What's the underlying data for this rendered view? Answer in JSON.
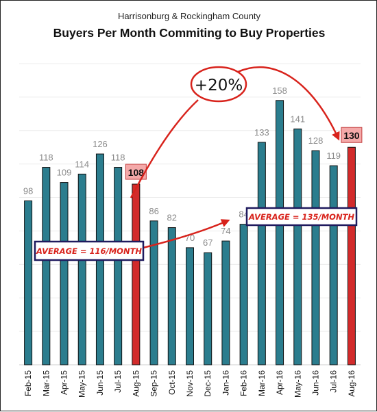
{
  "chart_data": {
    "type": "bar",
    "subtitle": "Harrisonburg & Rockingham County",
    "title": "Buyers Per Month Commiting to Buy Properties",
    "categories": [
      "Feb-15",
      "Mar-15",
      "Apr-15",
      "May-15",
      "Jun-15",
      "Jul-15",
      "Aug-15",
      "Sep-15",
      "Oct-15",
      "Nov-15",
      "Dec-15",
      "Jan-16",
      "Feb-16",
      "Mar-16",
      "Apr-16",
      "May-16",
      "Jun-16",
      "Jul-16",
      "Aug-16"
    ],
    "values": [
      98,
      118,
      109,
      114,
      126,
      118,
      108,
      86,
      82,
      70,
      67,
      74,
      84,
      133,
      158,
      141,
      128,
      119,
      130
    ],
    "highlighted": [
      "Aug-15",
      "Aug-16"
    ],
    "ylim": [
      0,
      180
    ],
    "grid": true,
    "colors": {
      "bar": "#2b7d8e",
      "highlight_bar": "#d22b2b",
      "highlight_label_bg": "#f4a9a9",
      "annotation": "#d8231c"
    },
    "annotations": {
      "avg_2015": "AVERAGE = 116/MONTH",
      "avg_2016": "AVERAGE = 135/MONTH",
      "change": "+20%"
    }
  }
}
